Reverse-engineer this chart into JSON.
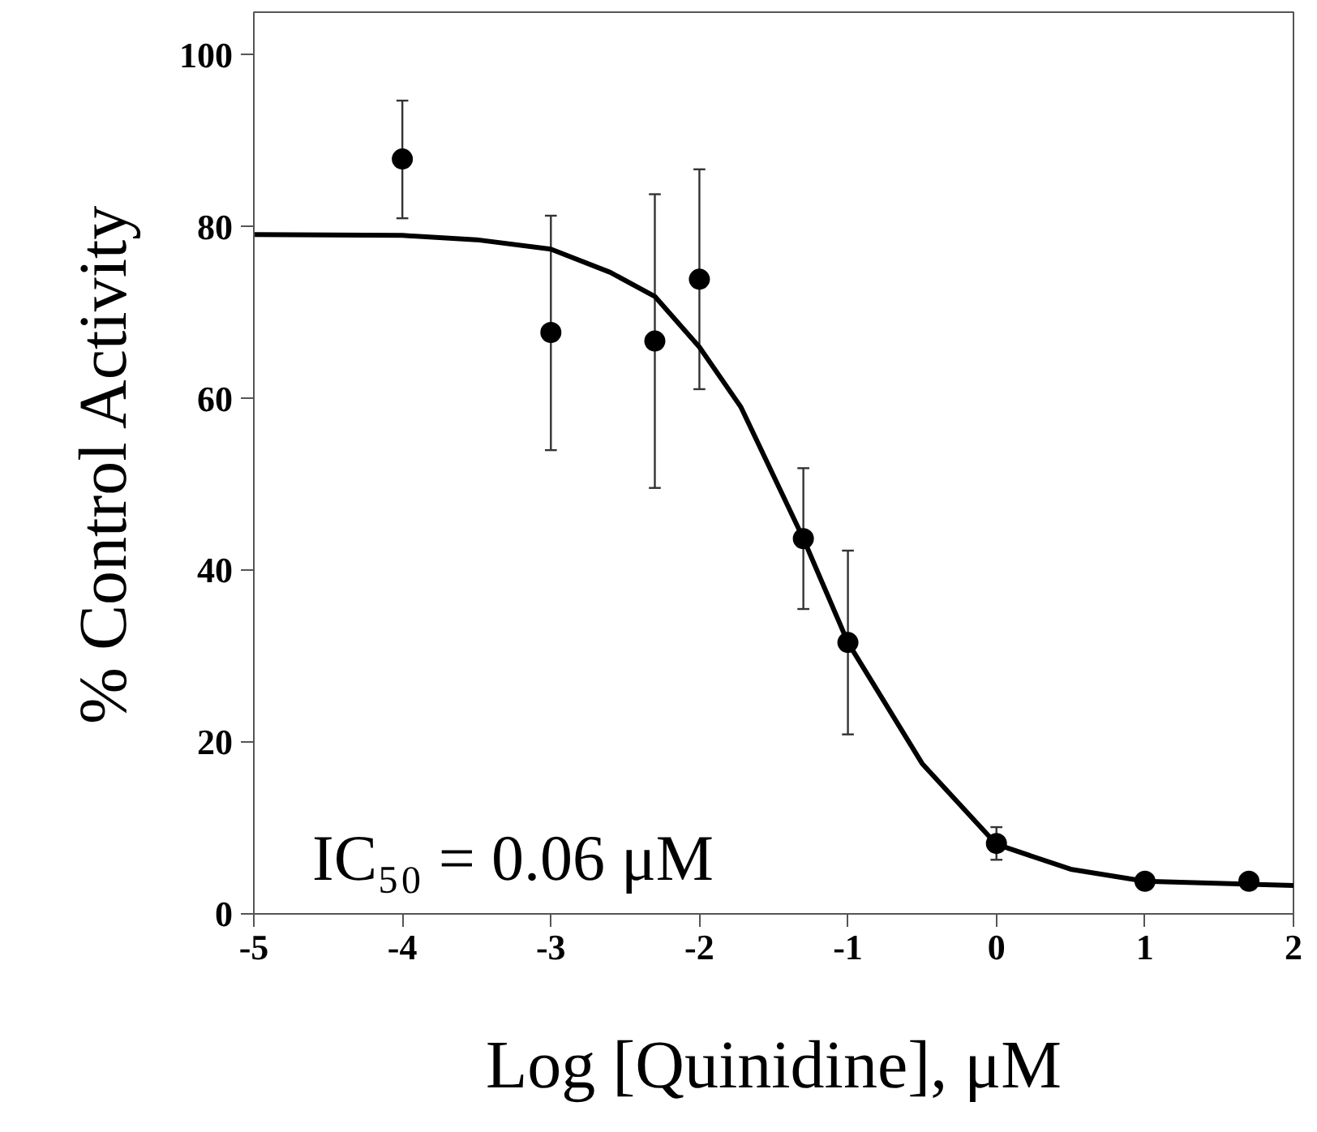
{
  "chart_data": {
    "type": "scatter",
    "xlabel": "Log [Quinidine], μM",
    "ylabel": "% Control Activity",
    "xlim": [
      -5,
      2
    ],
    "ylim": [
      0,
      105
    ],
    "xticks": [
      -5,
      -4,
      -3,
      -2,
      -1,
      0,
      1,
      2
    ],
    "yticks": [
      0,
      20,
      40,
      60,
      80,
      100
    ],
    "annotations": [
      "IC₅₀ = 0.06 μM"
    ],
    "series": [
      {
        "color": "#000000",
        "marker": "circle",
        "x": [
          -4,
          -3,
          -2.3,
          -2,
          -1.3,
          -1,
          0,
          1,
          1.7
        ],
        "values": [
          87.9,
          67.7,
          66.7,
          73.9,
          43.7,
          31.6,
          8.2,
          3.8,
          3.8
        ],
        "errors": [
          [
            81.0,
            94.7
          ],
          [
            54.0,
            81.3
          ],
          [
            49.6,
            83.8
          ],
          [
            61.1,
            86.7
          ],
          [
            35.5,
            51.9
          ],
          [
            20.9,
            42.3
          ],
          [
            6.3,
            10.1
          ],
          null,
          null
        ]
      },
      {
        "type": "line",
        "color": "#000000",
        "line_style": "solid",
        "x": [
          -5,
          -4,
          -3.5,
          -3,
          -2.6,
          -2.3,
          -2,
          -1.72,
          -1.3,
          -1,
          -0.5,
          0,
          0.5,
          1,
          2
        ],
        "values": [
          79.1,
          79.0,
          78.5,
          77.4,
          74.7,
          71.9,
          66.0,
          59.0,
          43.7,
          31.6,
          17.5,
          8.1,
          5.2,
          3.8,
          3.3
        ]
      }
    ]
  }
}
